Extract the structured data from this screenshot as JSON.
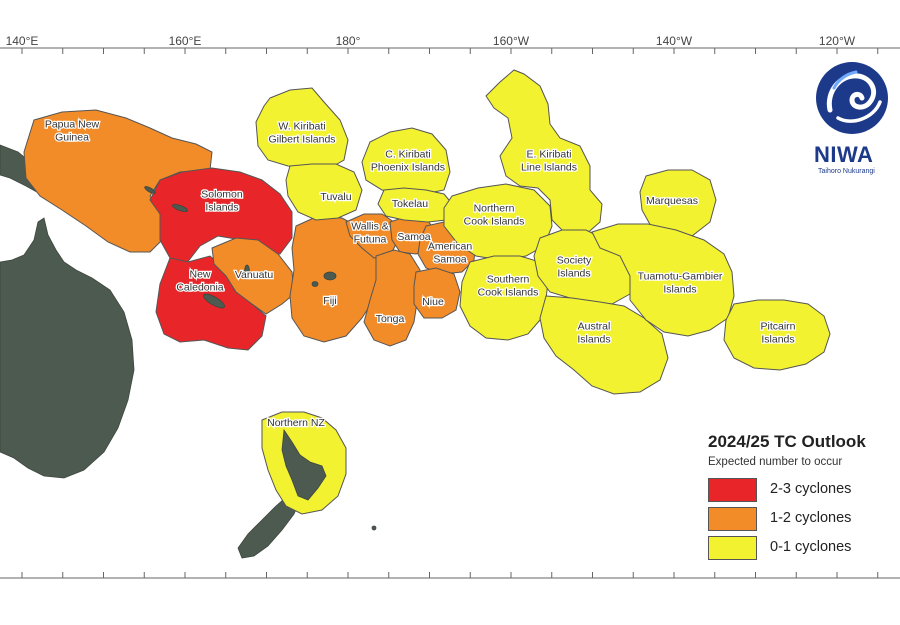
{
  "map": {
    "longitude_labels": [
      "140°E",
      "160°E",
      "180°",
      "160°W",
      "140°W",
      "120°W"
    ],
    "colors": {
      "land": "#4d5a4f",
      "outline": "#555555",
      "grid_frame": "#666666"
    },
    "regions": [
      {
        "name": "Papua New Guinea",
        "label_lines": [
          "Papua New",
          "Guinea"
        ],
        "category": "1-2"
      },
      {
        "name": "Solomon Islands",
        "label_lines": [
          "Solomon",
          "Islands"
        ],
        "category": "2-3"
      },
      {
        "name": "New Caledonia",
        "label_lines": [
          "New",
          "Caledonia"
        ],
        "category": "2-3"
      },
      {
        "name": "Vanuatu",
        "label_lines": [
          "Vanuatu"
        ],
        "category": "1-2"
      },
      {
        "name": "Fiji",
        "label_lines": [
          "Fiji"
        ],
        "category": "1-2"
      },
      {
        "name": "Wallis & Futuna",
        "label_lines": [
          "Wallis &",
          "Futuna"
        ],
        "category": "1-2"
      },
      {
        "name": "Samoa",
        "label_lines": [
          "Samoa"
        ],
        "category": "1-2"
      },
      {
        "name": "American Samoa",
        "label_lines": [
          "American",
          "Samoa"
        ],
        "category": "1-2"
      },
      {
        "name": "Tonga",
        "label_lines": [
          "Tonga"
        ],
        "category": "1-2"
      },
      {
        "name": "Niue",
        "label_lines": [
          "Niue"
        ],
        "category": "1-2"
      },
      {
        "name": "W. Kiribati Gilbert Islands",
        "label_lines": [
          "W. Kiribati",
          "Gilbert Islands"
        ],
        "category": "0-1"
      },
      {
        "name": "Tuvalu",
        "label_lines": [
          "Tuvalu"
        ],
        "category": "0-1"
      },
      {
        "name": "C. Kiribati Phoenix Islands",
        "label_lines": [
          "C. Kiribati",
          "Phoenix Islands"
        ],
        "category": "0-1"
      },
      {
        "name": "Tokelau",
        "label_lines": [
          "Tokelau"
        ],
        "category": "0-1"
      },
      {
        "name": "Northern Cook Islands",
        "label_lines": [
          "Northern",
          "Cook Islands"
        ],
        "category": "0-1"
      },
      {
        "name": "E. Kiribati Line Islands",
        "label_lines": [
          "E. Kiribati",
          "Line Islands"
        ],
        "category": "0-1"
      },
      {
        "name": "Southern Cook Islands",
        "label_lines": [
          "Southern",
          "Cook Islands"
        ],
        "category": "0-1"
      },
      {
        "name": "Society Islands",
        "label_lines": [
          "Society",
          "Islands"
        ],
        "category": "0-1"
      },
      {
        "name": "Austral Islands",
        "label_lines": [
          "Austral",
          "Islands"
        ],
        "category": "0-1"
      },
      {
        "name": "Marquesas",
        "label_lines": [
          "Marquesas"
        ],
        "category": "0-1"
      },
      {
        "name": "Tuamotu-Gambier Islands",
        "label_lines": [
          "Tuamotu-Gambier",
          "Islands"
        ],
        "category": "0-1"
      },
      {
        "name": "Pitcairn Islands",
        "label_lines": [
          "Pitcairn",
          "Islands"
        ],
        "category": "0-1"
      },
      {
        "name": "Northern NZ",
        "label_lines": [
          "Northern NZ"
        ],
        "category": "0-1"
      }
    ]
  },
  "legend": {
    "title": "2024/25 TC Outlook",
    "subtitle": "Expected number to occur",
    "items": [
      {
        "key": "2-3",
        "label": "2-3 cyclones",
        "color": "#e8262a"
      },
      {
        "key": "1-2",
        "label": "1-2 cyclones",
        "color": "#f28c28"
      },
      {
        "key": "0-1",
        "label": "0-1 cyclones",
        "color": "#f2f230"
      }
    ]
  },
  "logo": {
    "wordmark": "NIWA",
    "tagline": "Taihoro Nukurangi",
    "color": "#1d3a8a"
  }
}
